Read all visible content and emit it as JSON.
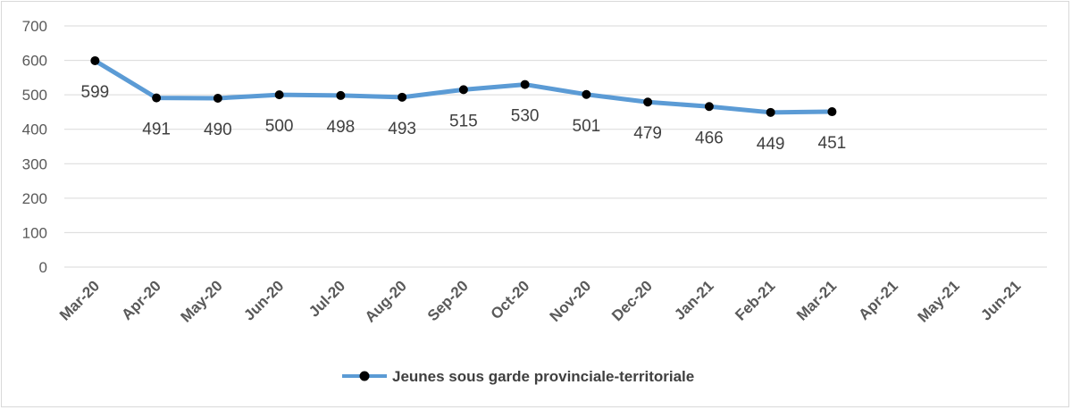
{
  "chart_data": {
    "type": "line",
    "categories": [
      "Mar-20",
      "Apr-20",
      "May-20",
      "Jun-20",
      "Jul-20",
      "Aug-20",
      "Sep-20",
      "Oct-20",
      "Nov-20",
      "Dec-20",
      "Jan-21",
      "Feb-21",
      "Mar-21",
      "Apr-21",
      "May-21",
      "Jun-21"
    ],
    "series": [
      {
        "name": "Jeunes sous garde provinciale-territoriale",
        "values": [
          599,
          491,
          490,
          500,
          498,
          493,
          515,
          530,
          501,
          479,
          466,
          449,
          451,
          null,
          null,
          null
        ],
        "color": "#5b9bd5",
        "marker_color": "#000000"
      }
    ],
    "y_ticks": [
      "0",
      "100",
      "200",
      "300",
      "400",
      "500",
      "600",
      "700"
    ],
    "ylim": [
      0,
      700
    ],
    "grid": true,
    "legend_position": "bottom"
  }
}
